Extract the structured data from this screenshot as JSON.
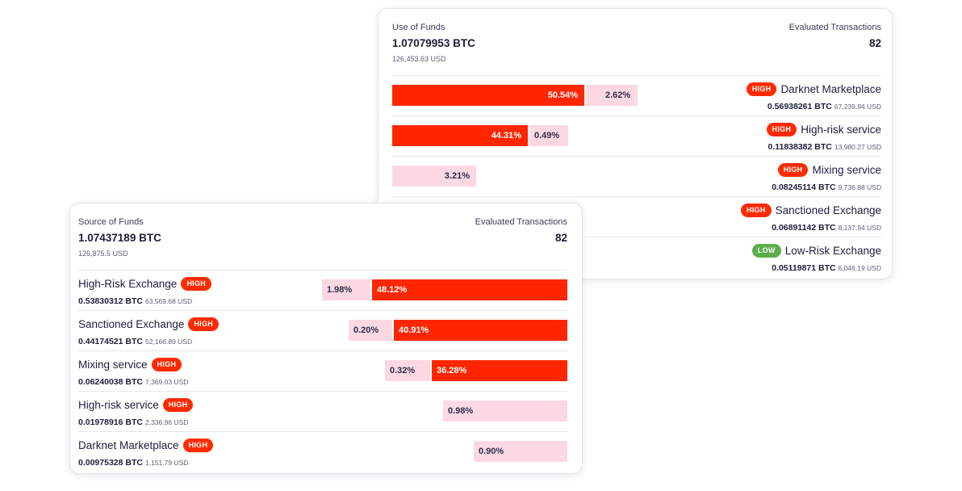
{
  "use_of_funds": {
    "title": "Use of Funds",
    "amount": "1.07079953 BTC",
    "usd": "126,453.63 USD",
    "eval_label": "Evaluated Transactions",
    "eval_value": "82",
    "rows": [
      {
        "name": "Darknet Marketplace",
        "risk": "HIGH",
        "btc": "0.56938261 BTC",
        "usd": "67,239.94 USD",
        "main_pct": "50.54%",
        "minor_pct": "2.62%"
      },
      {
        "name": "High-risk service",
        "risk": "HIGH",
        "btc": "0.11838382 BTC",
        "usd": "13,980.27 USD",
        "main_pct": "44.31%",
        "minor_pct": "0.49%"
      },
      {
        "name": "Mixing service",
        "risk": "HIGH",
        "btc": "0.08245114 BTC",
        "usd": "9,736.88 USD",
        "minor_pct": "3.21%"
      },
      {
        "name": "Sanctioned Exchange",
        "risk": "HIGH",
        "btc": "0.06891142 BTC",
        "usd": "8,137.94 USD"
      },
      {
        "name": "Low-Risk Exchange",
        "risk": "LOW",
        "btc": "0.05119871 BTC",
        "usd": "6,046.19 USD"
      }
    ]
  },
  "source_of_funds": {
    "title": "Source of Funds",
    "amount": "1.07437189 BTC",
    "usd": "126,875.5 USD",
    "eval_label": "Evaluated Transactions",
    "eval_value": "82",
    "rows": [
      {
        "name": "High-Risk Exchange",
        "risk": "HIGH",
        "btc": "0.53830312 BTC",
        "usd": "63,569.68 USD",
        "minor_pct": "1.98%",
        "main_pct": "48.12%"
      },
      {
        "name": "Sanctioned Exchange",
        "risk": "HIGH",
        "btc": "0.44174521 BTC",
        "usd": "52,166.89 USD",
        "minor_pct": "0.20%",
        "main_pct": "40.91%"
      },
      {
        "name": "Mixing service",
        "risk": "HIGH",
        "btc": "0.06240038 BTC",
        "usd": "7,369.03 USD",
        "minor_pct": "0.32%",
        "main_pct": "36.28%"
      },
      {
        "name": "High-risk service",
        "risk": "HIGH",
        "btc": "0.01978916 BTC",
        "usd": "2,336.96 USD",
        "minor_pct": "0.98%"
      },
      {
        "name": "Darknet Marketplace",
        "risk": "HIGH",
        "btc": "0.00975328 BTC",
        "usd": "1,151.79 USD",
        "minor_pct": "0.90%"
      }
    ]
  },
  "colors": {
    "high_risk_bar": "#ff2600",
    "minor_bar": "#fcd8e2",
    "high_badge": "#ff2a00",
    "low_badge": "#5cae4a"
  }
}
